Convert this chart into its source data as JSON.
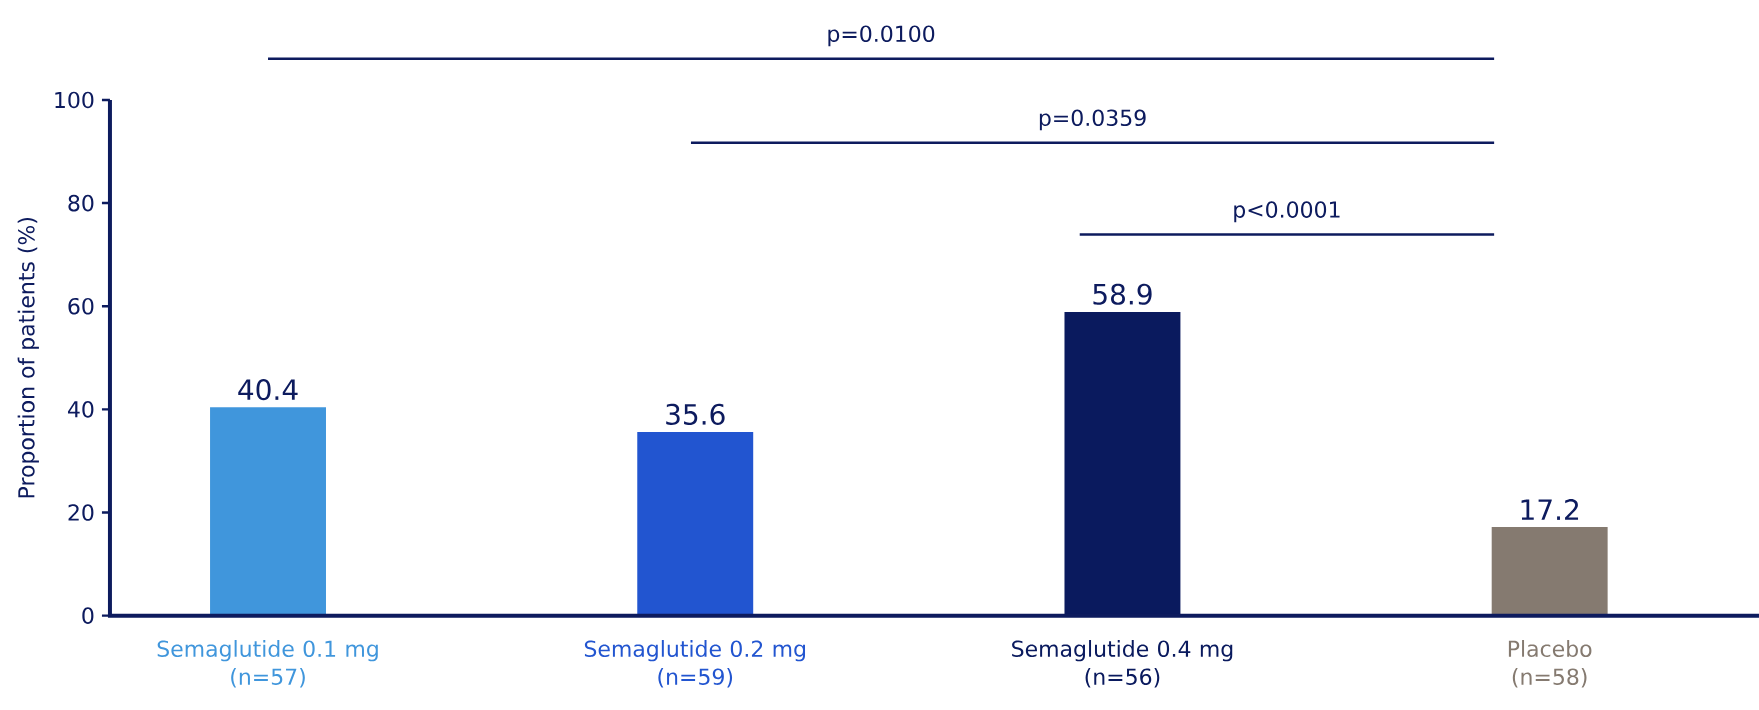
{
  "chart_data": {
    "type": "bar",
    "ylabel": "Proportion of patients (%)",
    "categories": [
      "Semaglutide 0.1 mg\n(n=57)",
      "Semaglutide 0.2 mg\n(n=59)",
      "Semaglutide 0.4 mg\n(n=56)",
      "Placebo\n(n=58)"
    ],
    "values": [
      40.4,
      35.6,
      58.9,
      17.2
    ],
    "colors": [
      "#4096dc",
      "#2255d0",
      "#0a1a5e",
      "#857a70"
    ],
    "ylim": [
      0,
      100
    ],
    "yticks": [
      0,
      20,
      40,
      60,
      80,
      100
    ],
    "data_labels": true,
    "grid": false,
    "annotations": [
      "p=0.0100",
      "p=0.0359",
      "p<0.0001"
    ]
  }
}
